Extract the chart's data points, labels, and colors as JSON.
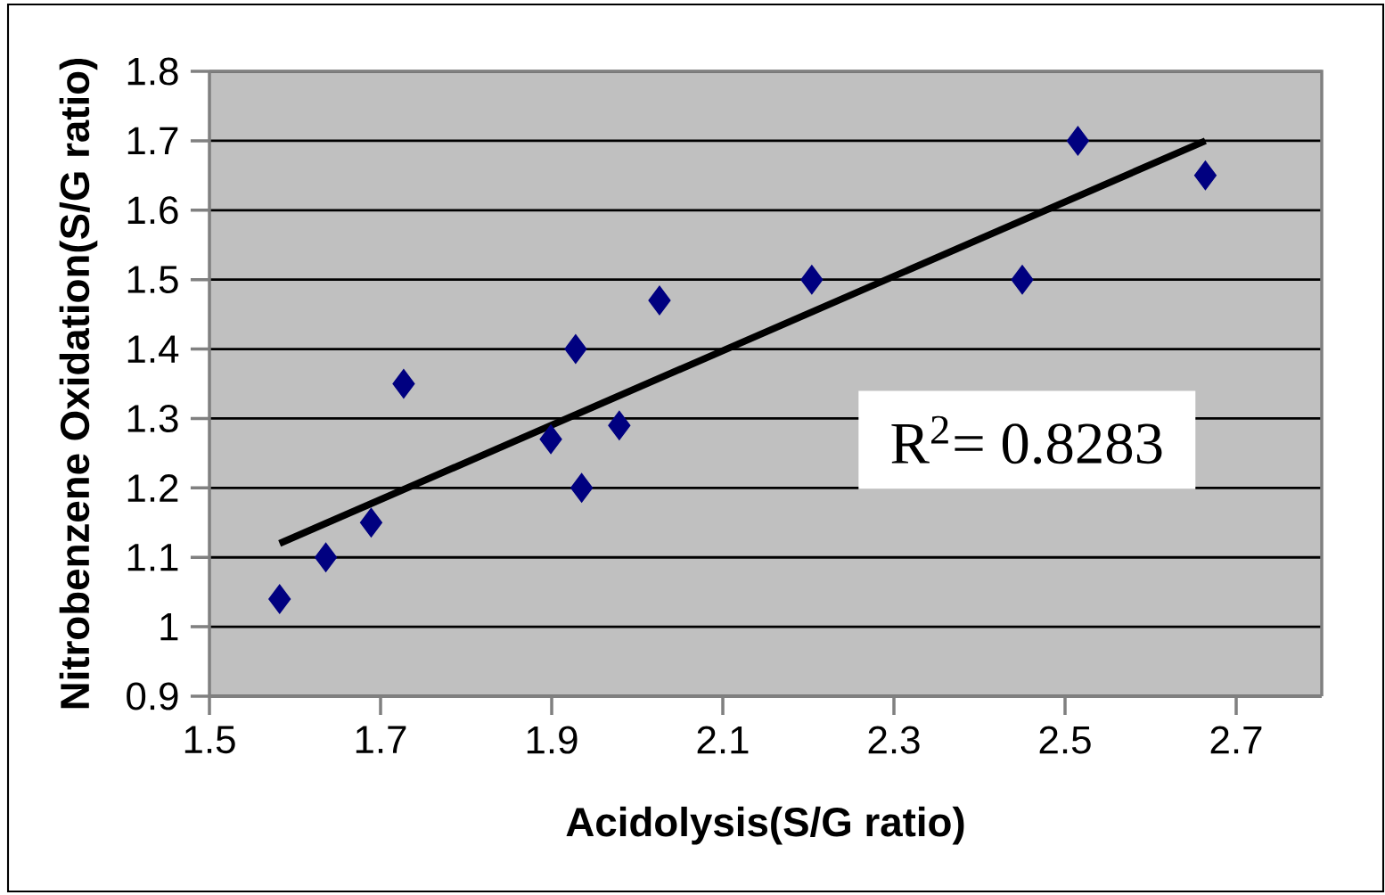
{
  "chart_data": {
    "type": "scatter",
    "xlabel": "Acidolysis(S/G ratio)",
    "ylabel": "Nitrobenzene Oxidation(S/G ratio)",
    "xlim": [
      1.5,
      2.8
    ],
    "xticks": [
      1.5,
      1.7,
      1.9,
      2.1,
      2.3,
      2.5,
      2.7
    ],
    "ylim": [
      0.9,
      1.8
    ],
    "yticks": [
      0.9,
      1,
      1.1,
      1.2,
      1.3,
      1.4,
      1.5,
      1.6,
      1.7,
      1.8
    ],
    "grid": "y",
    "series": [
      {
        "color": "#000080",
        "marker": "diamond",
        "x": [
          1.582,
          1.636,
          1.689,
          1.727,
          1.899,
          1.928,
          1.935,
          1.979,
          2.026,
          2.204,
          2.45,
          2.515,
          2.664
        ],
        "values": [
          1.04,
          1.1,
          1.15,
          1.35,
          1.27,
          1.4,
          1.2,
          1.29,
          1.47,
          1.5,
          1.5,
          1.7,
          1.65
        ]
      },
      {
        "type": "line",
        "color": "#000000",
        "marker": "none",
        "line_style": "solid",
        "x": [
          1.582,
          2.664
        ],
        "values": [
          1.12,
          1.7
        ]
      }
    ],
    "annotations": [
      "R$^{2}$= 0.8283"
    ]
  }
}
